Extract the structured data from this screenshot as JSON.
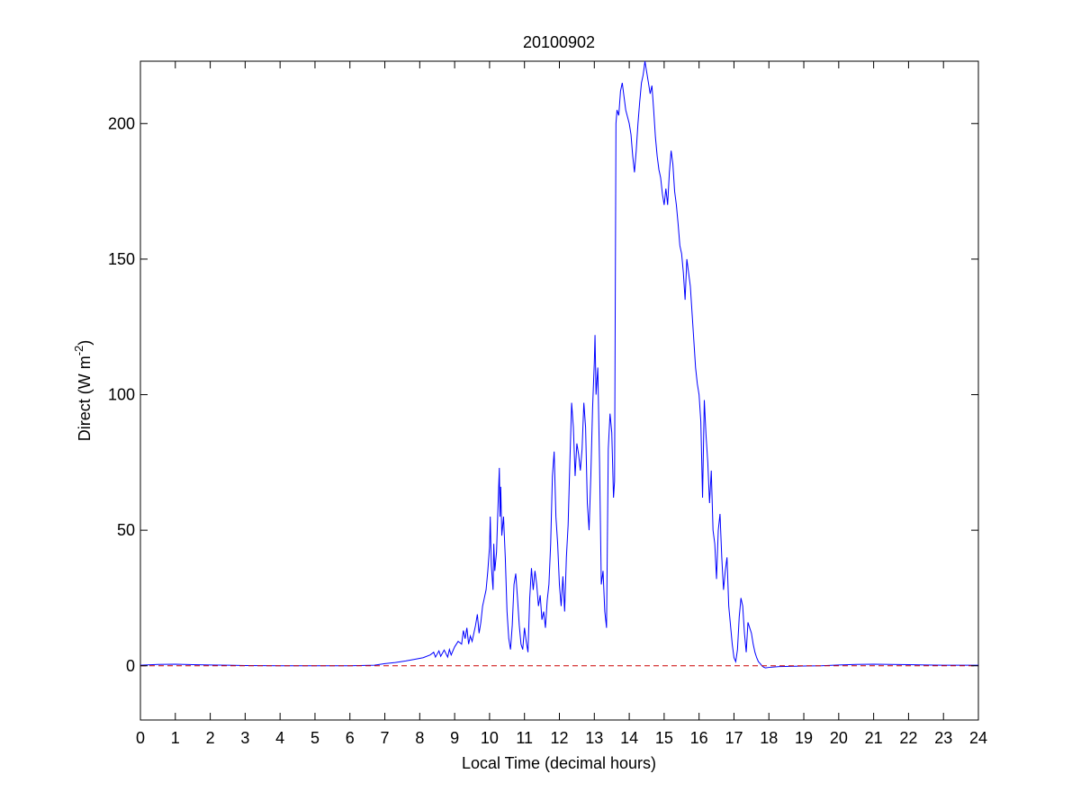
{
  "chart_data": {
    "type": "line",
    "title": "20100902",
    "xlabel": "Local Time (decimal hours)",
    "ylabel": {
      "text": "Direct (W m",
      "superscript": "-2",
      "suffix": ")"
    },
    "xlim": [
      0,
      24
    ],
    "ylim": [
      -20,
      223
    ],
    "xticks": [
      0,
      1,
      2,
      3,
      4,
      5,
      6,
      7,
      8,
      9,
      10,
      11,
      12,
      13,
      14,
      15,
      16,
      17,
      18,
      19,
      20,
      21,
      22,
      23,
      24
    ],
    "yticks": [
      0,
      50,
      100,
      150,
      200
    ],
    "grid": false,
    "legend": "none",
    "series": [
      {
        "color": "#0000ff",
        "style": "solid",
        "points": [
          [
            0,
            0.2
          ],
          [
            0.5,
            0.5
          ],
          [
            1,
            0.6
          ],
          [
            1.5,
            0.4
          ],
          [
            2,
            0.3
          ],
          [
            2.5,
            0.2
          ],
          [
            3,
            0.1
          ],
          [
            4,
            0
          ],
          [
            5,
            0
          ],
          [
            6,
            0
          ],
          [
            6.7,
            0.2
          ],
          [
            7,
            0.8
          ],
          [
            7.3,
            1.2
          ],
          [
            7.6,
            1.8
          ],
          [
            7.9,
            2.5
          ],
          [
            8.1,
            3
          ],
          [
            8.3,
            4
          ],
          [
            8.4,
            5
          ],
          [
            8.45,
            3.2
          ],
          [
            8.55,
            5.5
          ],
          [
            8.6,
            3.5
          ],
          [
            8.7,
            5.8
          ],
          [
            8.8,
            3.2
          ],
          [
            8.85,
            6
          ],
          [
            8.9,
            4
          ],
          [
            9,
            7
          ],
          [
            9.1,
            9
          ],
          [
            9.2,
            8
          ],
          [
            9.25,
            13
          ],
          [
            9.3,
            10
          ],
          [
            9.35,
            14
          ],
          [
            9.4,
            8
          ],
          [
            9.45,
            11
          ],
          [
            9.5,
            9
          ],
          [
            9.6,
            15
          ],
          [
            9.65,
            19
          ],
          [
            9.7,
            12
          ],
          [
            9.75,
            16
          ],
          [
            9.8,
            22
          ],
          [
            9.85,
            25
          ],
          [
            9.9,
            28
          ],
          [
            9.95,
            35
          ],
          [
            10,
            44
          ],
          [
            10.02,
            55
          ],
          [
            10.05,
            37
          ],
          [
            10.1,
            28
          ],
          [
            10.12,
            45
          ],
          [
            10.15,
            35
          ],
          [
            10.2,
            42
          ],
          [
            10.25,
            62
          ],
          [
            10.28,
            73
          ],
          [
            10.3,
            55
          ],
          [
            10.32,
            66
          ],
          [
            10.35,
            48
          ],
          [
            10.4,
            55
          ],
          [
            10.45,
            40
          ],
          [
            10.5,
            20
          ],
          [
            10.55,
            10
          ],
          [
            10.6,
            6
          ],
          [
            10.65,
            15
          ],
          [
            10.7,
            30
          ],
          [
            10.75,
            34
          ],
          [
            10.8,
            25
          ],
          [
            10.85,
            15
          ],
          [
            10.9,
            8
          ],
          [
            10.95,
            6
          ],
          [
            11,
            14
          ],
          [
            11.05,
            9
          ],
          [
            11.1,
            5
          ],
          [
            11.15,
            25
          ],
          [
            11.2,
            36
          ],
          [
            11.25,
            28
          ],
          [
            11.3,
            35
          ],
          [
            11.35,
            30
          ],
          [
            11.4,
            22
          ],
          [
            11.45,
            26
          ],
          [
            11.5,
            17
          ],
          [
            11.55,
            20
          ],
          [
            11.6,
            14
          ],
          [
            11.65,
            24
          ],
          [
            11.7,
            30
          ],
          [
            11.75,
            45
          ],
          [
            11.8,
            70
          ],
          [
            11.85,
            79
          ],
          [
            11.9,
            55
          ],
          [
            11.95,
            45
          ],
          [
            12,
            30
          ],
          [
            12.05,
            22
          ],
          [
            12.1,
            33
          ],
          [
            12.15,
            20
          ],
          [
            12.2,
            40
          ],
          [
            12.25,
            52
          ],
          [
            12.3,
            75
          ],
          [
            12.35,
            97
          ],
          [
            12.4,
            88
          ],
          [
            12.45,
            70
          ],
          [
            12.5,
            82
          ],
          [
            12.55,
            78
          ],
          [
            12.6,
            72
          ],
          [
            12.65,
            80
          ],
          [
            12.7,
            97
          ],
          [
            12.75,
            88
          ],
          [
            12.8,
            60
          ],
          [
            12.85,
            50
          ],
          [
            12.9,
            70
          ],
          [
            12.95,
            95
          ],
          [
            13,
            112
          ],
          [
            13.02,
            122
          ],
          [
            13.05,
            100
          ],
          [
            13.1,
            110
          ],
          [
            13.15,
            75
          ],
          [
            13.2,
            30
          ],
          [
            13.25,
            35
          ],
          [
            13.3,
            20
          ],
          [
            13.35,
            14
          ],
          [
            13.4,
            80
          ],
          [
            13.45,
            93
          ],
          [
            13.5,
            86
          ],
          [
            13.55,
            62
          ],
          [
            13.58,
            68
          ],
          [
            13.62,
            200
          ],
          [
            13.65,
            205
          ],
          [
            13.7,
            203
          ],
          [
            13.75,
            212
          ],
          [
            13.8,
            215
          ],
          [
            13.85,
            210
          ],
          [
            13.9,
            205
          ],
          [
            14,
            200
          ],
          [
            14.05,
            196
          ],
          [
            14.1,
            188
          ],
          [
            14.15,
            182
          ],
          [
            14.2,
            190
          ],
          [
            14.25,
            200
          ],
          [
            14.3,
            208
          ],
          [
            14.35,
            215
          ],
          [
            14.4,
            218
          ],
          [
            14.45,
            223
          ],
          [
            14.5,
            219
          ],
          [
            14.55,
            215
          ],
          [
            14.6,
            211
          ],
          [
            14.65,
            214
          ],
          [
            14.7,
            205
          ],
          [
            14.75,
            195
          ],
          [
            14.8,
            188
          ],
          [
            14.85,
            183
          ],
          [
            14.9,
            180
          ],
          [
            14.95,
            174
          ],
          [
            15,
            170
          ],
          [
            15.05,
            176
          ],
          [
            15.1,
            170
          ],
          [
            15.15,
            182
          ],
          [
            15.2,
            190
          ],
          [
            15.25,
            185
          ],
          [
            15.3,
            175
          ],
          [
            15.35,
            170
          ],
          [
            15.4,
            163
          ],
          [
            15.45,
            155
          ],
          [
            15.5,
            152
          ],
          [
            15.55,
            145
          ],
          [
            15.6,
            135
          ],
          [
            15.65,
            150
          ],
          [
            15.7,
            145
          ],
          [
            15.75,
            140
          ],
          [
            15.8,
            130
          ],
          [
            15.85,
            120
          ],
          [
            15.9,
            110
          ],
          [
            15.95,
            104
          ],
          [
            16,
            100
          ],
          [
            16.05,
            90
          ],
          [
            16.1,
            62
          ],
          [
            16.15,
            98
          ],
          [
            16.2,
            85
          ],
          [
            16.25,
            75
          ],
          [
            16.3,
            60
          ],
          [
            16.35,
            72
          ],
          [
            16.4,
            50
          ],
          [
            16.45,
            45
          ],
          [
            16.5,
            32
          ],
          [
            16.55,
            50
          ],
          [
            16.6,
            56
          ],
          [
            16.65,
            40
          ],
          [
            16.7,
            28
          ],
          [
            16.75,
            35
          ],
          [
            16.8,
            40
          ],
          [
            16.85,
            22
          ],
          [
            16.9,
            15
          ],
          [
            16.95,
            8
          ],
          [
            17,
            3
          ],
          [
            17.05,
            1.5
          ],
          [
            17.1,
            6
          ],
          [
            17.15,
            18
          ],
          [
            17.2,
            25
          ],
          [
            17.25,
            22
          ],
          [
            17.3,
            12
          ],
          [
            17.35,
            5
          ],
          [
            17.4,
            16
          ],
          [
            17.45,
            14
          ],
          [
            17.5,
            12
          ],
          [
            17.55,
            8
          ],
          [
            17.6,
            5
          ],
          [
            17.65,
            3
          ],
          [
            17.7,
            1.5
          ],
          [
            17.75,
            0.8
          ],
          [
            17.8,
            0
          ],
          [
            17.85,
            -0.5
          ],
          [
            17.9,
            -0.8
          ],
          [
            18,
            -0.6
          ],
          [
            18.3,
            -0.3
          ],
          [
            19,
            -0.1
          ],
          [
            19.5,
            0
          ],
          [
            20,
            0.3
          ],
          [
            20.5,
            0.5
          ],
          [
            21,
            0.6
          ],
          [
            21.5,
            0.5
          ],
          [
            22,
            0.4
          ],
          [
            22.5,
            0.3
          ],
          [
            23,
            0.2
          ],
          [
            23.5,
            0.2
          ],
          [
            24,
            0.2
          ]
        ]
      },
      {
        "color": "#cc0000",
        "style": "dashed",
        "points": [
          [
            0,
            0
          ],
          [
            24,
            0
          ]
        ]
      }
    ]
  }
}
